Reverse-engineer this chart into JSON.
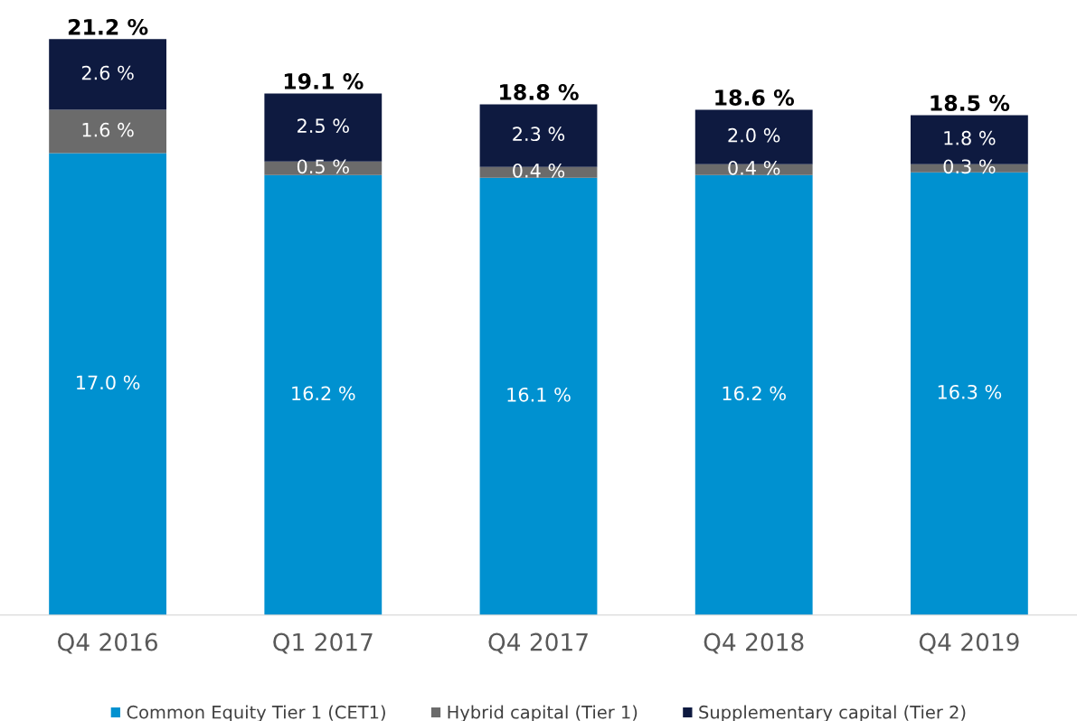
{
  "chart_data": {
    "type": "bar",
    "stacked": true,
    "tick_labels": "x",
    "legend": "bottom",
    "categories": [
      "Q4 2016",
      "Q1 2017",
      "Q4 2017",
      "Q4 2018",
      "Q4 2019"
    ],
    "series": [
      {
        "name": "Common Equity Tier 1 (CET1)",
        "color": "#0091d0",
        "values": [
          17.0,
          16.2,
          16.1,
          16.2,
          16.3
        ],
        "value_labels": [
          "17.0 %",
          "16.2 %",
          "16.1 %",
          "16.2 %",
          "16.3 %"
        ]
      },
      {
        "name": "Hybrid capital (Tier 1)",
        "color": "#6b6b6b",
        "values": [
          1.6,
          0.5,
          0.4,
          0.4,
          0.3
        ],
        "value_labels": [
          "1.6 %",
          "0.5 %",
          "0.4 %",
          "0.4 %",
          "0.3 %"
        ]
      },
      {
        "name": "Supplementary capital (Tier 2)",
        "color": "#0e1a40",
        "values": [
          2.6,
          2.5,
          2.3,
          2.0,
          1.8
        ],
        "value_labels": [
          "2.6 %",
          "2.5 %",
          "2.3 %",
          "2.0 %",
          "1.8 %"
        ]
      }
    ],
    "totals": [
      "21.2 %",
      "19.1 %",
      "18.8 %",
      "18.6 %",
      "18.5 %"
    ]
  }
}
